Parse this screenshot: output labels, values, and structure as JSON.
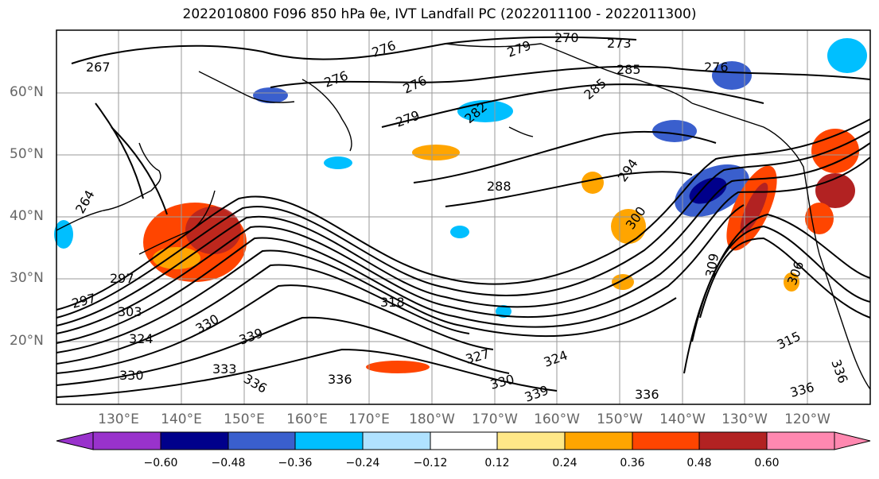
{
  "title": "2022010800 F096 850 hPa θe, IVT Landfall PC (2022011100 - 2022011300)",
  "lat_labels": [
    "60°N",
    "50°N",
    "40°N",
    "30°N",
    "20°N"
  ],
  "lon_labels": [
    "130°E",
    "140°E",
    "150°E",
    "160°E",
    "170°E",
    "180°W",
    "170°W",
    "160°W",
    "150°W",
    "140°W",
    "130°W",
    "120°W"
  ],
  "contour_labels": [
    "267",
    "276",
    "276",
    "276",
    "279",
    "279",
    "282",
    "285",
    "285",
    "270",
    "273",
    "276",
    "288",
    "294",
    "300",
    "303",
    "297",
    "297",
    "309",
    "306",
    "318",
    "324",
    "324",
    "327",
    "330",
    "330",
    "330",
    "333",
    "336",
    "336",
    "336",
    "336",
    "339",
    "339",
    "315",
    "336",
    "264"
  ],
  "colorbar": {
    "ticks": [
      "−0.60",
      "−0.48",
      "−0.36",
      "−0.24",
      "−0.12",
      "0.12",
      "0.24",
      "0.36",
      "0.48",
      "0.60"
    ],
    "colors": [
      "#9932cc",
      "#00008b",
      "#3a5fcd",
      "#00bfff",
      "#b0e2ff",
      "#ffffff",
      "#ffe888",
      "#ffa500",
      "#ff4500",
      "#b22222",
      "#ff88b0"
    ]
  }
}
